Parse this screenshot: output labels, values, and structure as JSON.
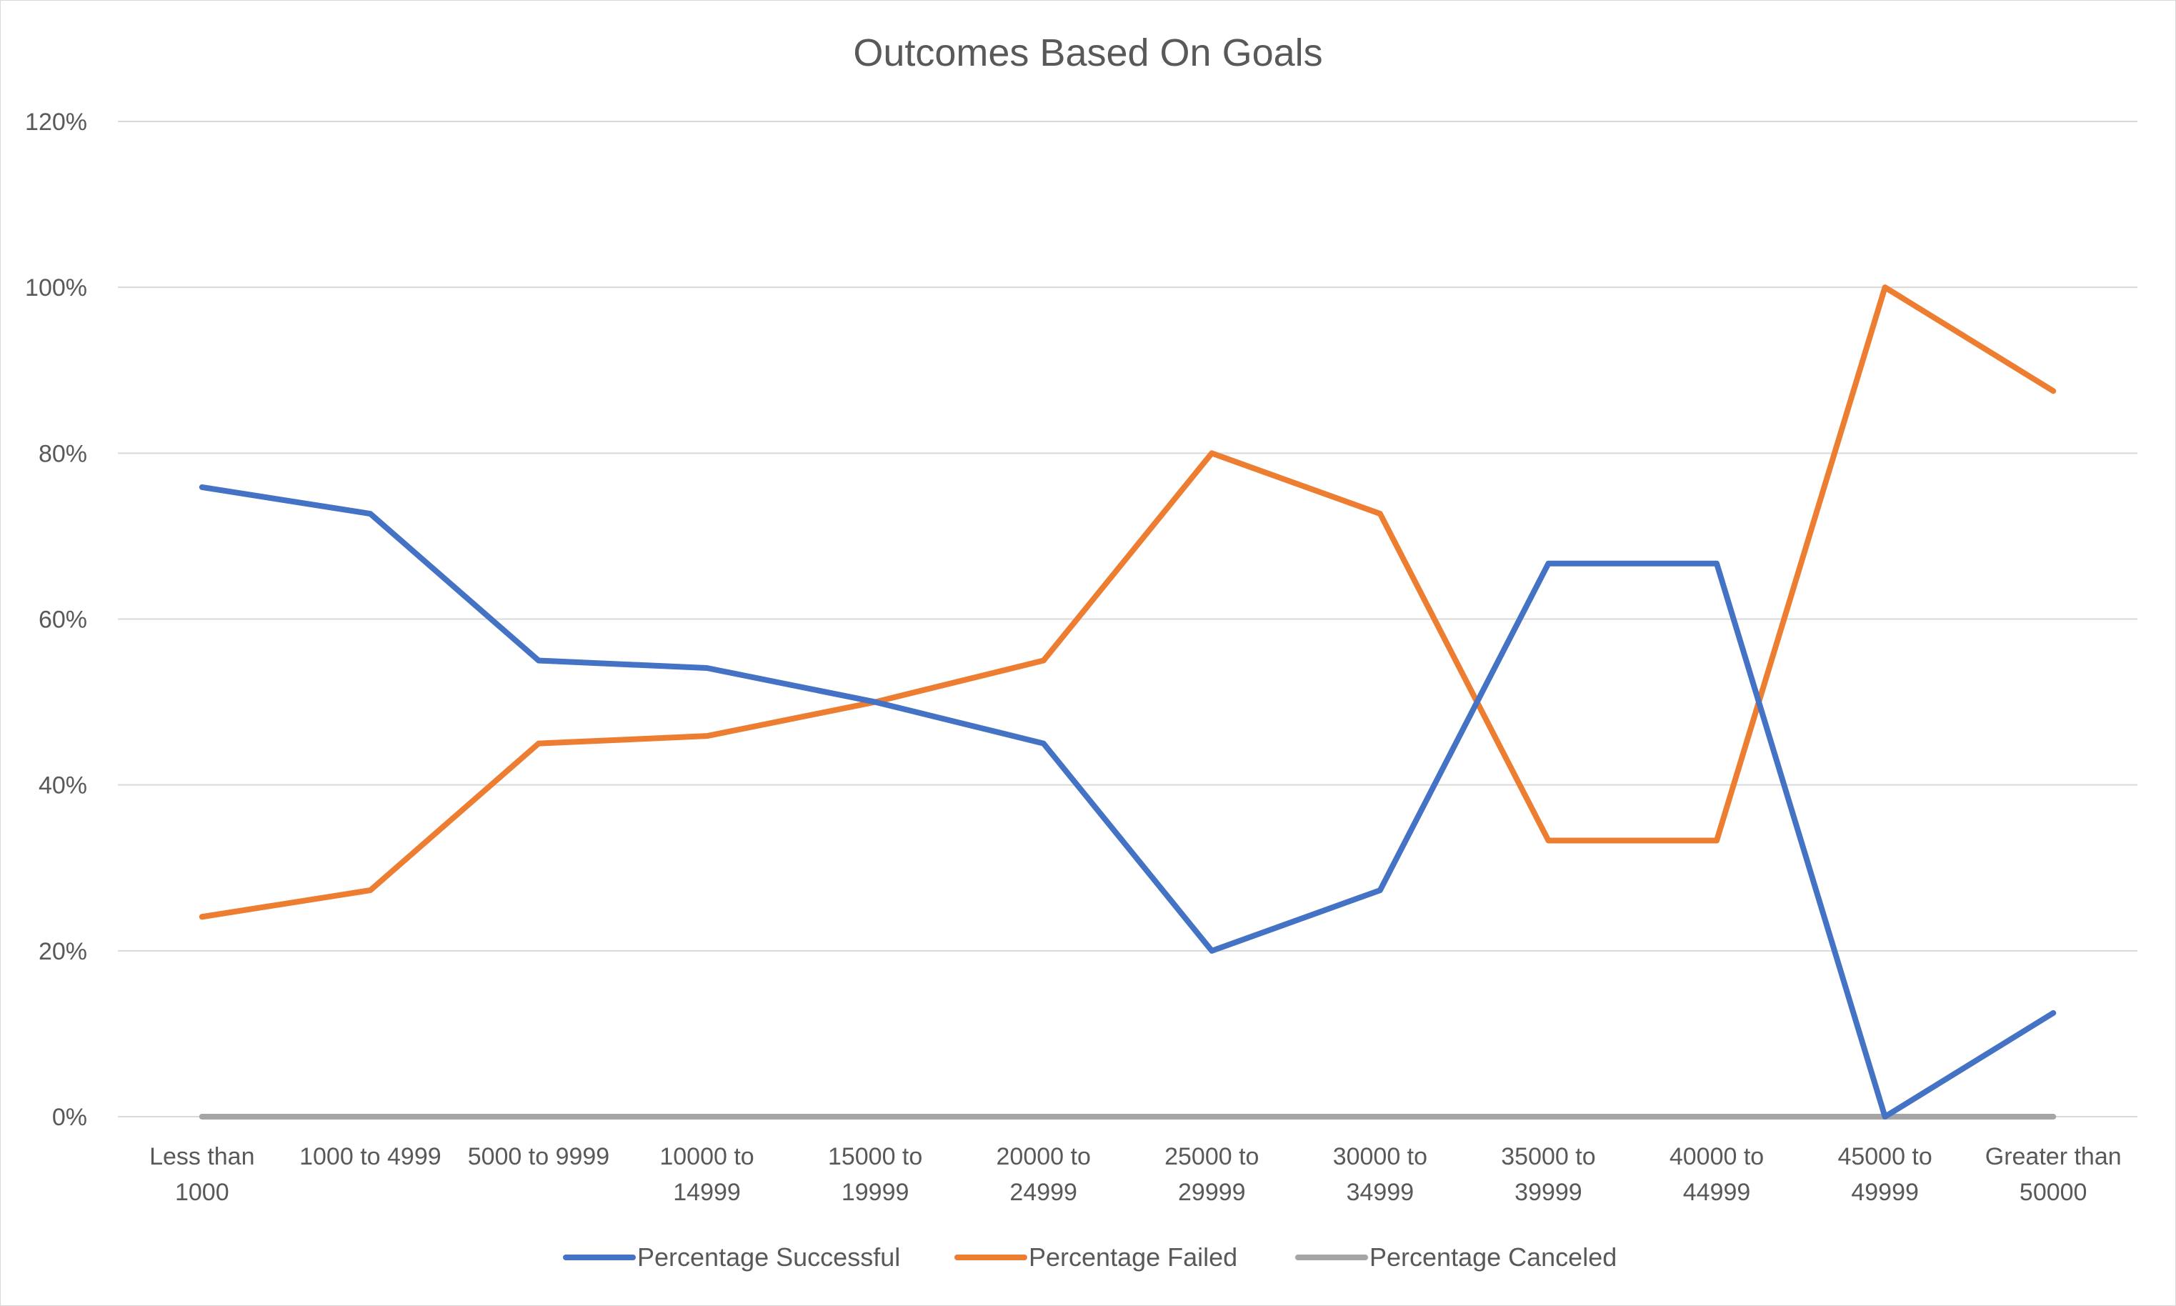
{
  "chart_data": {
    "type": "line",
    "title": "Outcomes Based On Goals",
    "xlabel": "",
    "ylabel": "",
    "categories": [
      [
        "Less than",
        "1000"
      ],
      [
        "1000 to 4999"
      ],
      [
        "5000 to 9999"
      ],
      [
        "10000 to",
        "14999"
      ],
      [
        "15000 to",
        "19999"
      ],
      [
        "20000 to",
        "24999"
      ],
      [
        "25000 to",
        "29999"
      ],
      [
        "30000 to",
        "34999"
      ],
      [
        "35000 to",
        "39999"
      ],
      [
        "40000 to",
        "44999"
      ],
      [
        "45000 to",
        "49999"
      ],
      [
        "Greater than",
        "50000"
      ]
    ],
    "ylim": [
      0,
      1.2
    ],
    "yticks": [
      0,
      0.2,
      0.4,
      0.6,
      0.8,
      1.0,
      1.2
    ],
    "ytick_labels": [
      "0%",
      "20%",
      "40%",
      "60%",
      "80%",
      "100%",
      "120%"
    ],
    "grid": true,
    "legend_position": "bottom",
    "series": [
      {
        "name": "Percentage Successful",
        "color": "#4472c4",
        "values": [
          0.759,
          0.727,
          0.55,
          0.541,
          0.5,
          0.45,
          0.2,
          0.273,
          0.667,
          0.667,
          0.0,
          0.125
        ]
      },
      {
        "name": "Percentage Failed",
        "color": "#ed7d31",
        "values": [
          0.241,
          0.273,
          0.45,
          0.459,
          0.5,
          0.55,
          0.8,
          0.727,
          0.333,
          0.333,
          1.0,
          0.875
        ]
      },
      {
        "name": "Percentage Canceled",
        "color": "#a5a5a5",
        "values": [
          0,
          0,
          0,
          0,
          0,
          0,
          0,
          0,
          0,
          0,
          0,
          0
        ]
      }
    ]
  }
}
